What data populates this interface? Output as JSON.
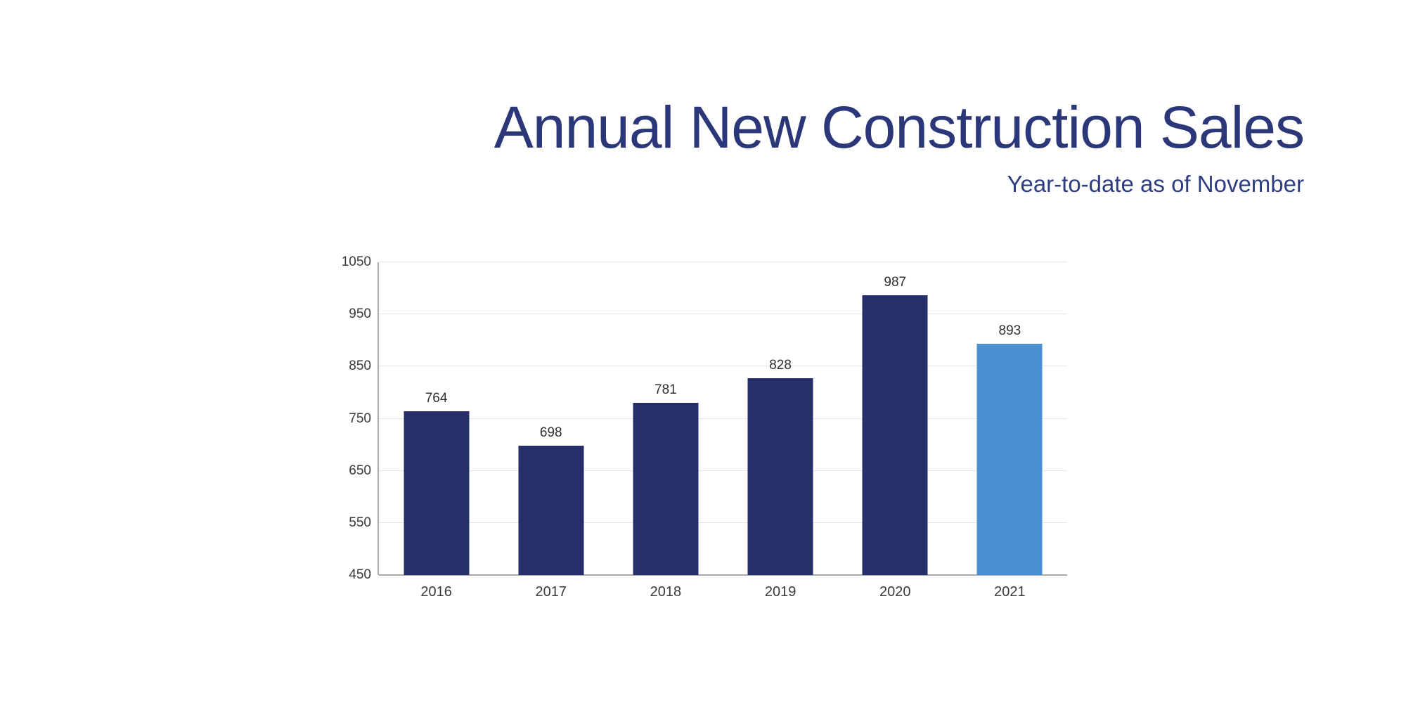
{
  "header": {
    "title": "Annual New Construction Sales",
    "subtitle": "Year-to-date as of November"
  },
  "colors": {
    "title_text": "#2B3778",
    "subtitle_text": "#2E3D80",
    "bar_primary": "#272F6B",
    "bar_highlight": "#4B90D0",
    "gridline": "#E1E6F0",
    "axis_line": "#A9A9A9",
    "tick_label": "#3A3A3A",
    "value_label": "#303030",
    "background": "#FFFFFF"
  },
  "chart_data": {
    "type": "bar",
    "title": "Annual New Construction Sales",
    "subtitle": "Year-to-date as of November",
    "categories": [
      "2016",
      "2017",
      "2018",
      "2019",
      "2020",
      "2021"
    ],
    "values": [
      764,
      698,
      781,
      828,
      987,
      893
    ],
    "bar_colors": [
      "#272F6B",
      "#272F6B",
      "#272F6B",
      "#272F6B",
      "#272F6B",
      "#4B90D0"
    ],
    "highlighted_category": "2021",
    "xlabel": "",
    "ylabel": "",
    "ylim": [
      450,
      1050
    ],
    "yticks": [
      450,
      550,
      650,
      750,
      850,
      950,
      1050
    ],
    "grid": true,
    "legend_position": "none",
    "data_labels": true
  }
}
